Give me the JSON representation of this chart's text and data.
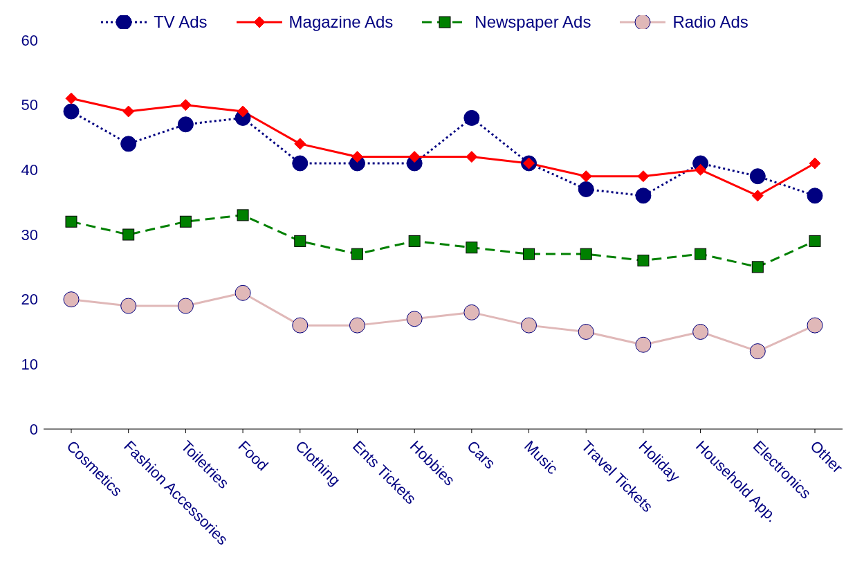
{
  "chart_data": {
    "type": "line",
    "categories": [
      "Cosmetics",
      "Fashion Accessories",
      "Toiletries",
      "Food",
      "Clothing",
      "Ents Tickets",
      "Hobbies",
      "Cars",
      "Music",
      "Travel Tickets",
      "Holiday",
      "Household App.",
      "Electronics",
      "Other"
    ],
    "series": [
      {
        "name": "TV Ads",
        "color": "#000080",
        "marker": "circle",
        "line_style": "dotted",
        "values": [
          49,
          44,
          47,
          48,
          41,
          41,
          41,
          48,
          41,
          37,
          36,
          41,
          39,
          36
        ]
      },
      {
        "name": "Magazine Ads",
        "color": "#ff0000",
        "marker": "diamond",
        "line_style": "solid",
        "values": [
          51,
          49,
          50,
          49,
          44,
          42,
          42,
          42,
          41,
          39,
          39,
          40,
          36,
          41
        ]
      },
      {
        "name": "Newspaper Ads",
        "color": "#008000",
        "marker": "square",
        "line_style": "dashed",
        "values": [
          32,
          30,
          32,
          33,
          29,
          27,
          29,
          28,
          27,
          27,
          26,
          27,
          25,
          29
        ]
      },
      {
        "name": "Radio Ads",
        "color": "#e0b8b8",
        "marker": "circle",
        "line_style": "solid",
        "values": [
          20,
          19,
          19,
          21,
          16,
          16,
          17,
          18,
          16,
          15,
          13,
          15,
          12,
          16
        ]
      }
    ],
    "ylim": [
      0,
      60
    ],
    "yticks": [
      0,
      10,
      20,
      30,
      40,
      50,
      60
    ],
    "grid": false,
    "legend": "top"
  }
}
